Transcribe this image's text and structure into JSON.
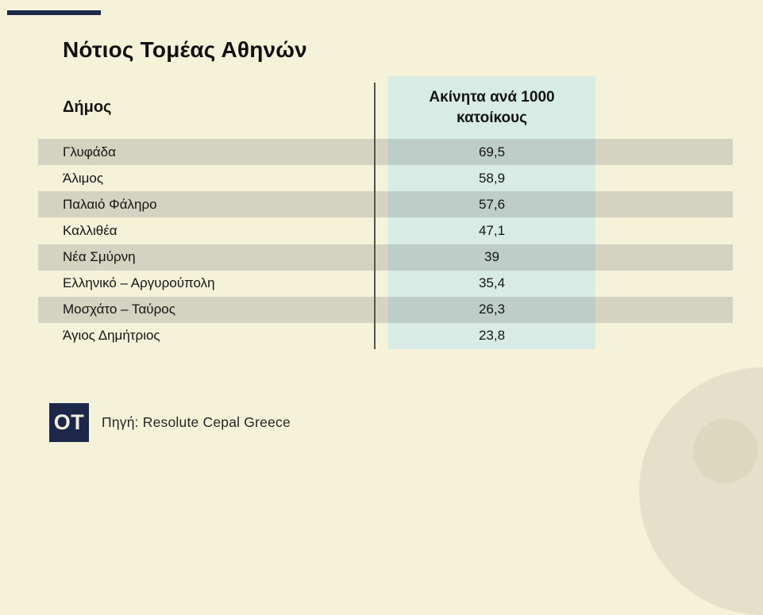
{
  "colors": {
    "bg": "#f5f2da",
    "stripe": "#d4d3c1",
    "teal": "#d8ece5",
    "teal-dark": "#becdc7",
    "navy": "#1c2749",
    "divider": "#55564b",
    "circle-outer": "#e4e1ca",
    "circle-inner": "#dbd8bf"
  },
  "header": {
    "title": "Νότιος Τομέας Αθηνών"
  },
  "table": {
    "columns": [
      {
        "label": "Δήμος"
      },
      {
        "label": "Ακίνητα ανά 1000 κατοίκους"
      }
    ],
    "rows": [
      {
        "name": "Γλυφάδα",
        "value": "69,5"
      },
      {
        "name": "Άλιμος",
        "value": "58,9"
      },
      {
        "name": "Παλαιό Φάληρο",
        "value": "57,6"
      },
      {
        "name": "Καλλιθέα",
        "value": "47,1"
      },
      {
        "name": "Νέα Σμύρνη",
        "value": "39"
      },
      {
        "name": "Ελληνικό – Αργυρούπολη",
        "value": "35,4"
      },
      {
        "name": "Μοσχάτο – Ταύρος",
        "value": "26,3"
      },
      {
        "name": "Άγιος Δημήτριος",
        "value": "23,8"
      }
    ]
  },
  "footer": {
    "logo": "OT",
    "source": "Πηγή: Resolute Cepal Greece"
  },
  "chart_data": {
    "type": "table",
    "title": "Νότιος Τομέας Αθηνών",
    "columns": [
      "Δήμος",
      "Ακίνητα ανά 1000 κατοίκους"
    ],
    "categories": [
      "Γλυφάδα",
      "Άλιμος",
      "Παλαιό Φάληρο",
      "Καλλιθέα",
      "Νέα Σμύρνη",
      "Ελληνικό – Αργυρούπολη",
      "Μοσχάτο – Ταύρος",
      "Άγιος Δημήτριος"
    ],
    "values": [
      69.5,
      58.9,
      57.6,
      47.1,
      39,
      35.4,
      26.3,
      23.8
    ],
    "value_format": "decimal-comma",
    "source": "Πηγή: Resolute Cepal Greece",
    "layout_hints": {
      "striped_rows": "odd rows (1st, 3rd, 5th, 7th) have gray stripe",
      "value_column_background": "light teal",
      "legend": "none",
      "grid": "off"
    }
  }
}
